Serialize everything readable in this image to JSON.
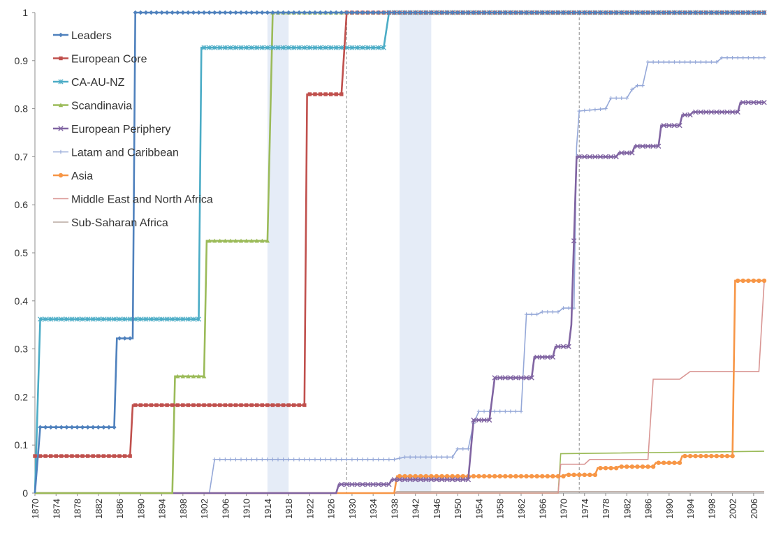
{
  "chart_data": {
    "type": "line",
    "title": "",
    "xlabel": "",
    "ylabel": "",
    "xlim": [
      1870,
      2008
    ],
    "ylim": [
      0,
      1
    ],
    "y_ticks": [
      "0",
      "0.1",
      "0.2",
      "0.3",
      "0.4",
      "0.5",
      "0.6",
      "0.7",
      "0.8",
      "0.9",
      "1"
    ],
    "x_ticks": [
      "1870",
      "1874",
      "1878",
      "1882",
      "1886",
      "1890",
      "1894",
      "1898",
      "1902",
      "1906",
      "1910",
      "1914",
      "1918",
      "1922",
      "1926",
      "1930",
      "1934",
      "1938",
      "1942",
      "1946",
      "1950",
      "1954",
      "1958",
      "1962",
      "1966",
      "1970",
      "1974",
      "1978",
      "1982",
      "1986",
      "1990",
      "1994",
      "1998",
      "2002",
      "2006"
    ],
    "grid": false,
    "legend_position": "top-left",
    "shaded_periods": [
      [
        1914,
        1918
      ],
      [
        1939,
        1945
      ]
    ],
    "reference_lines": [
      1929,
      1973
    ],
    "series": [
      {
        "name": "Leaders",
        "color": "#4f81bd",
        "marker": "diamond",
        "points": [
          [
            1870,
            0
          ],
          [
            1871,
            0.137
          ],
          [
            1885,
            0.137
          ],
          [
            1885.5,
            0.322
          ],
          [
            1888.5,
            0.322
          ],
          [
            1889,
            1
          ],
          [
            2008,
            1
          ]
        ]
      },
      {
        "name": "European Core",
        "color": "#c0504d",
        "marker": "square",
        "points": [
          [
            1870,
            0.077
          ],
          [
            1888,
            0.077
          ],
          [
            1888.5,
            0.183
          ],
          [
            1921,
            0.183
          ],
          [
            1921.5,
            0.83
          ],
          [
            1928,
            0.83
          ],
          [
            1929,
            1
          ],
          [
            2008,
            1
          ]
        ]
      },
      {
        "name": "CA-AU-NZ",
        "color": "#4bacc6",
        "marker": "star",
        "points": [
          [
            1870,
            0
          ],
          [
            1871,
            0.362
          ],
          [
            1901,
            0.362
          ],
          [
            1901.5,
            0.927
          ],
          [
            1936,
            0.927
          ],
          [
            1937,
            1
          ],
          [
            2008,
            1
          ]
        ]
      },
      {
        "name": "Scandinavia",
        "color": "#9bbb59",
        "marker": "triangle",
        "points": [
          [
            1870,
            0
          ],
          [
            1896,
            0
          ],
          [
            1896.5,
            0.243
          ],
          [
            1902,
            0.243
          ],
          [
            1902.5,
            0.525
          ],
          [
            1914,
            0.525
          ],
          [
            1915,
            1
          ],
          [
            2008,
            1
          ]
        ]
      },
      {
        "name": "European Periphery",
        "color": "#8064a2",
        "marker": "x",
        "points": [
          [
            1870,
            0
          ],
          [
            1927,
            0
          ],
          [
            1927.5,
            0.018
          ],
          [
            1937,
            0.018
          ],
          [
            1937.5,
            0.028
          ],
          [
            1952,
            0.028
          ],
          [
            1953,
            0.152
          ],
          [
            1956,
            0.152
          ],
          [
            1957,
            0.24
          ],
          [
            1964,
            0.24
          ],
          [
            1964.5,
            0.283
          ],
          [
            1968,
            0.283
          ],
          [
            1968.5,
            0.305
          ],
          [
            1971,
            0.305
          ],
          [
            1971.5,
            0.35
          ],
          [
            1972.5,
            0.7
          ],
          [
            1980,
            0.7
          ],
          [
            1980.5,
            0.708
          ],
          [
            1983,
            0.708
          ],
          [
            1983.5,
            0.722
          ],
          [
            1988,
            0.722
          ],
          [
            1988.5,
            0.765
          ],
          [
            1992,
            0.765
          ],
          [
            1992.5,
            0.787
          ],
          [
            1994,
            0.787
          ],
          [
            1994.5,
            0.793
          ],
          [
            2003,
            0.793
          ],
          [
            2003.5,
            0.813
          ],
          [
            2008,
            0.813
          ]
        ]
      },
      {
        "name": "Latam and Caribbean",
        "color": "#95a8d8",
        "marker": "plus",
        "points": [
          [
            1870,
            0
          ],
          [
            1903,
            0
          ],
          [
            1904,
            0.07
          ],
          [
            1938,
            0.07
          ],
          [
            1940,
            0.075
          ],
          [
            1949,
            0.075
          ],
          [
            1950,
            0.092
          ],
          [
            1952,
            0.092
          ],
          [
            1953,
            0.145
          ],
          [
            1954,
            0.17
          ],
          [
            1962,
            0.17
          ],
          [
            1963,
            0.372
          ],
          [
            1965,
            0.372
          ],
          [
            1966,
            0.377
          ],
          [
            1969,
            0.377
          ],
          [
            1970,
            0.385
          ],
          [
            1972,
            0.385
          ],
          [
            1972.5,
            0.72
          ],
          [
            1973,
            0.795
          ],
          [
            1978,
            0.8
          ],
          [
            1979,
            0.822
          ],
          [
            1982,
            0.822
          ],
          [
            1983,
            0.84
          ],
          [
            1984,
            0.848
          ],
          [
            1985,
            0.848
          ],
          [
            1986,
            0.897
          ],
          [
            1999,
            0.897
          ],
          [
            2000,
            0.906
          ],
          [
            2008,
            0.906
          ]
        ]
      },
      {
        "name": "Asia",
        "color": "#f79646",
        "marker": "circle",
        "points": [
          [
            1870,
            0
          ],
          [
            1938,
            0
          ],
          [
            1938.5,
            0.035
          ],
          [
            1970,
            0.035
          ],
          [
            1970.5,
            0.038
          ],
          [
            1976,
            0.038
          ],
          [
            1976.5,
            0.052
          ],
          [
            1980,
            0.052
          ],
          [
            1980.5,
            0.055
          ],
          [
            1987,
            0.055
          ],
          [
            1987.5,
            0.063
          ],
          [
            1992,
            0.063
          ],
          [
            1992.5,
            0.077
          ],
          [
            2002,
            0.077
          ],
          [
            2002.5,
            0.442
          ],
          [
            2008,
            0.442
          ]
        ]
      },
      {
        "name": "Middle East and North Africa",
        "color": "#d99694",
        "marker": "none",
        "points": [
          [
            1870,
            0
          ],
          [
            1969,
            0
          ],
          [
            1969.5,
            0.06
          ],
          [
            1974,
            0.06
          ],
          [
            1975,
            0.07
          ],
          [
            1986,
            0.07
          ],
          [
            1987,
            0.237
          ],
          [
            1992,
            0.237
          ],
          [
            1994,
            0.253
          ],
          [
            2007,
            0.253
          ],
          [
            2008,
            0.44
          ]
        ]
      },
      {
        "name": "Sub-Saharan Africa",
        "color": "#b8a8a0",
        "marker": "none",
        "points": [
          [
            1870,
            0
          ],
          [
            1938,
            0
          ],
          [
            1938.5,
            0.003
          ],
          [
            2008,
            0.003
          ]
        ]
      }
    ],
    "extra_lines": [
      {
        "color": "#9bbb59",
        "points": [
          [
            1938,
            0
          ],
          [
            1969,
            0
          ],
          [
            1969.5,
            0.082
          ],
          [
            2008,
            0.087
          ]
        ]
      }
    ]
  }
}
